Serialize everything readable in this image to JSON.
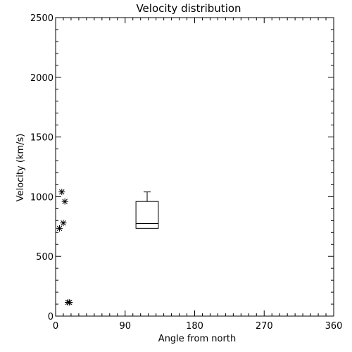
{
  "chart_data": {
    "type": "scatter",
    "title": "Velocity distribution",
    "xlabel": "Angle from north",
    "ylabel": "Velocity (km/s)",
    "xlim": [
      0,
      360
    ],
    "ylim": [
      0,
      2500
    ],
    "xticks": [
      0,
      90,
      180,
      270,
      360
    ],
    "xtick_labels": [
      "0",
      "90",
      "180",
      "270",
      "360"
    ],
    "yticks": [
      0,
      500,
      1000,
      1500,
      2000,
      2500
    ],
    "ytick_labels": [
      "0",
      "500",
      "1000",
      "1500",
      "2000",
      "2500"
    ],
    "grid": false,
    "marker": "asterisk",
    "points": [
      {
        "x": 8,
        "y": 1040
      },
      {
        "x": 12,
        "y": 960
      },
      {
        "x": 10,
        "y": 780
      },
      {
        "x": 5,
        "y": 735
      },
      {
        "x": 16,
        "y": 115
      },
      {
        "x": 18,
        "y": 115
      }
    ],
    "boxplot": {
      "x_min": 104,
      "x_max": 133,
      "min": 735,
      "q1": 735,
      "median": 775,
      "q3": 960,
      "max": 1040
    }
  }
}
